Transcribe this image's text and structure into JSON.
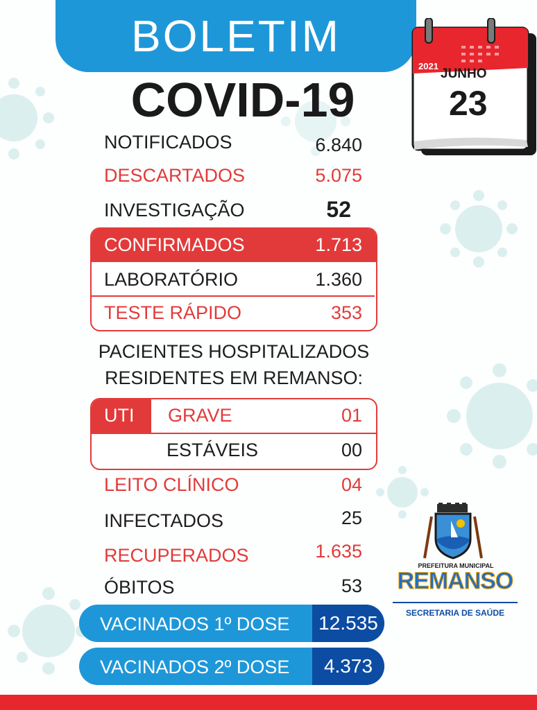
{
  "header": {
    "boletim": "BOLETIM",
    "title": "COVID-19"
  },
  "calendar": {
    "year": "2021",
    "month": "JUNHO",
    "day": "23"
  },
  "stats": {
    "notificados": {
      "label": "NOTIFICADOS",
      "value": "6.840"
    },
    "descartados": {
      "label": "DESCARTADOS",
      "value": "5.075"
    },
    "investigacao": {
      "label": "INVESTIGAÇÃO",
      "value": "52"
    }
  },
  "confirmed": {
    "header": {
      "label": "CONFIRMADOS",
      "value": "1.713"
    },
    "laboratorio": {
      "label": "LABORATÓRIO",
      "value": "1.360"
    },
    "teste_rapido": {
      "label": "TESTE RÁPIDO",
      "value": "353"
    }
  },
  "hospital": {
    "heading_line1": "PACIENTES HOSPITALIZADOS",
    "heading_line2": "RESIDENTES EM REMANSO:",
    "uti": {
      "tag": "UTI",
      "grave_label": "GRAVE",
      "grave_value": "01",
      "estaveis_label": "ESTÁVEIS",
      "estaveis_value": "00"
    }
  },
  "others": {
    "leito_clinico": {
      "label": "LEITO CLÍNICO",
      "value": "04"
    },
    "infectados": {
      "label": "INFECTADOS",
      "value": "25"
    },
    "recuperados": {
      "label": "RECUPERADOS",
      "value": "1.635"
    },
    "obitos": {
      "label": "ÓBITOS",
      "value": "53"
    }
  },
  "vaccines": {
    "dose1": {
      "label": "VACINADOS 1º DOSE",
      "value": "12.535"
    },
    "dose2": {
      "label": "VACINADOS 2º DOSE",
      "value": "4.373"
    }
  },
  "logo": {
    "prefeitura": "PREFEITURA MUNICIPAL",
    "city": "REMANSO",
    "secretaria": "SECRETARIA DE SAÚDE"
  },
  "colors": {
    "blue": "#1e97d9",
    "dark_blue": "#0c4ca3",
    "red": "#e23a3a"
  }
}
